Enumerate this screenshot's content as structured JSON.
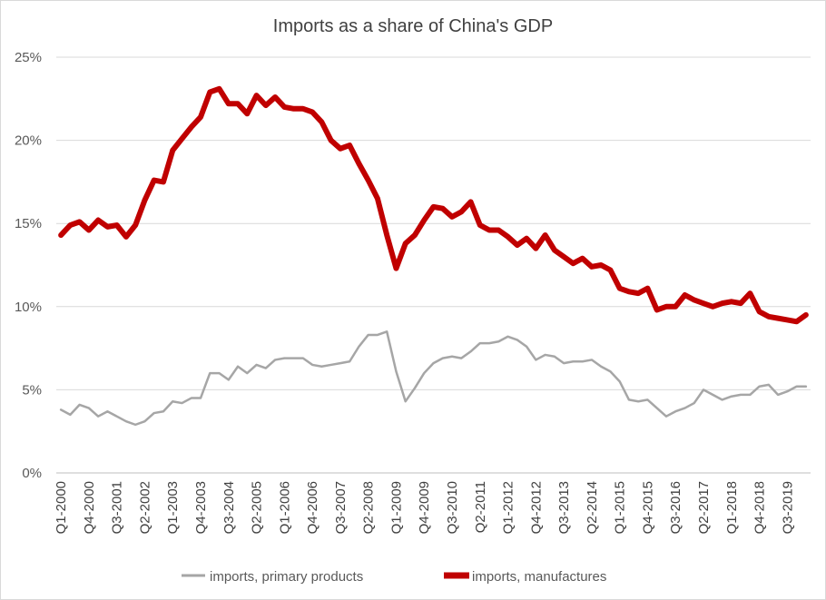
{
  "chart_data": {
    "type": "line",
    "title": "Imports as a share of China's GDP",
    "xlabel": "",
    "ylabel": "",
    "ylim": [
      0,
      25
    ],
    "ytick_labels": [
      "0%",
      "5%",
      "10%",
      "15%",
      "20%",
      "25%"
    ],
    "ytick_values": [
      0,
      5,
      10,
      15,
      20,
      25
    ],
    "x_tick_labels": [
      "Q1-2000",
      "Q4-2000",
      "Q3-2001",
      "Q2-2002",
      "Q1-2003",
      "Q4-2003",
      "Q3-2004",
      "Q2-2005",
      "Q1-2006",
      "Q4-2006",
      "Q3-2007",
      "Q2-2008",
      "Q1-2009",
      "Q4-2009",
      "Q3-2010",
      "Q2-2011",
      "Q1-2012",
      "Q4-2012",
      "Q3-2013",
      "Q2-2014",
      "Q1-2015",
      "Q4-2015",
      "Q3-2016",
      "Q2-2017",
      "Q1-2018",
      "Q4-2018",
      "Q3-2019"
    ],
    "grid": "horizontal",
    "legend_position": "bottom",
    "series": [
      {
        "name": "imports, primary products",
        "color": "#a6a6a6",
        "values": [
          3.8,
          3.5,
          4.1,
          3.9,
          3.4,
          3.7,
          3.4,
          3.1,
          2.9,
          3.1,
          3.6,
          3.7,
          4.3,
          4.2,
          4.5,
          4.5,
          6.0,
          6.0,
          5.6,
          6.4,
          6.0,
          6.5,
          6.3,
          6.8,
          6.9,
          6.9,
          6.9,
          6.5,
          6.4,
          6.5,
          6.6,
          6.7,
          7.6,
          8.3,
          8.3,
          8.5,
          6.1,
          4.3,
          5.1,
          6.0,
          6.6,
          6.9,
          7.0,
          6.9,
          7.3,
          7.8,
          7.8,
          7.9,
          8.2,
          8.0,
          7.6,
          6.8,
          7.1,
          7.0,
          6.6,
          6.7,
          6.7,
          6.8,
          6.4,
          6.1,
          5.5,
          4.4,
          4.3,
          4.4,
          3.9,
          3.4,
          3.7,
          3.9,
          4.2,
          5.0,
          4.7,
          4.4,
          4.6,
          4.7,
          4.7,
          5.2,
          5.3,
          4.7,
          4.9,
          5.2,
          5.2
        ]
      },
      {
        "name": "imports, manufactures",
        "color": "#c00000",
        "values": [
          14.3,
          14.9,
          15.1,
          14.6,
          15.2,
          14.8,
          14.9,
          14.2,
          14.9,
          16.4,
          17.6,
          17.5,
          19.4,
          20.1,
          20.8,
          21.4,
          22.9,
          23.1,
          22.2,
          22.2,
          21.6,
          22.7,
          22.1,
          22.6,
          22.0,
          21.9,
          21.9,
          21.7,
          21.1,
          20.0,
          19.5,
          19.7,
          18.6,
          17.6,
          16.5,
          14.3,
          12.3,
          13.8,
          14.3,
          15.2,
          16.0,
          15.9,
          15.4,
          15.7,
          16.3,
          14.9,
          14.6,
          14.6,
          14.2,
          13.7,
          14.1,
          13.5,
          14.3,
          13.4,
          13.0,
          12.6,
          12.9,
          12.4,
          12.5,
          12.2,
          11.1,
          10.9,
          10.8,
          11.1,
          9.8,
          10.0,
          10.0,
          10.7,
          10.4,
          10.2,
          10.0,
          10.2,
          10.3,
          10.2,
          10.8,
          9.7,
          9.4,
          9.3,
          9.2,
          9.1,
          9.5
        ]
      }
    ]
  }
}
